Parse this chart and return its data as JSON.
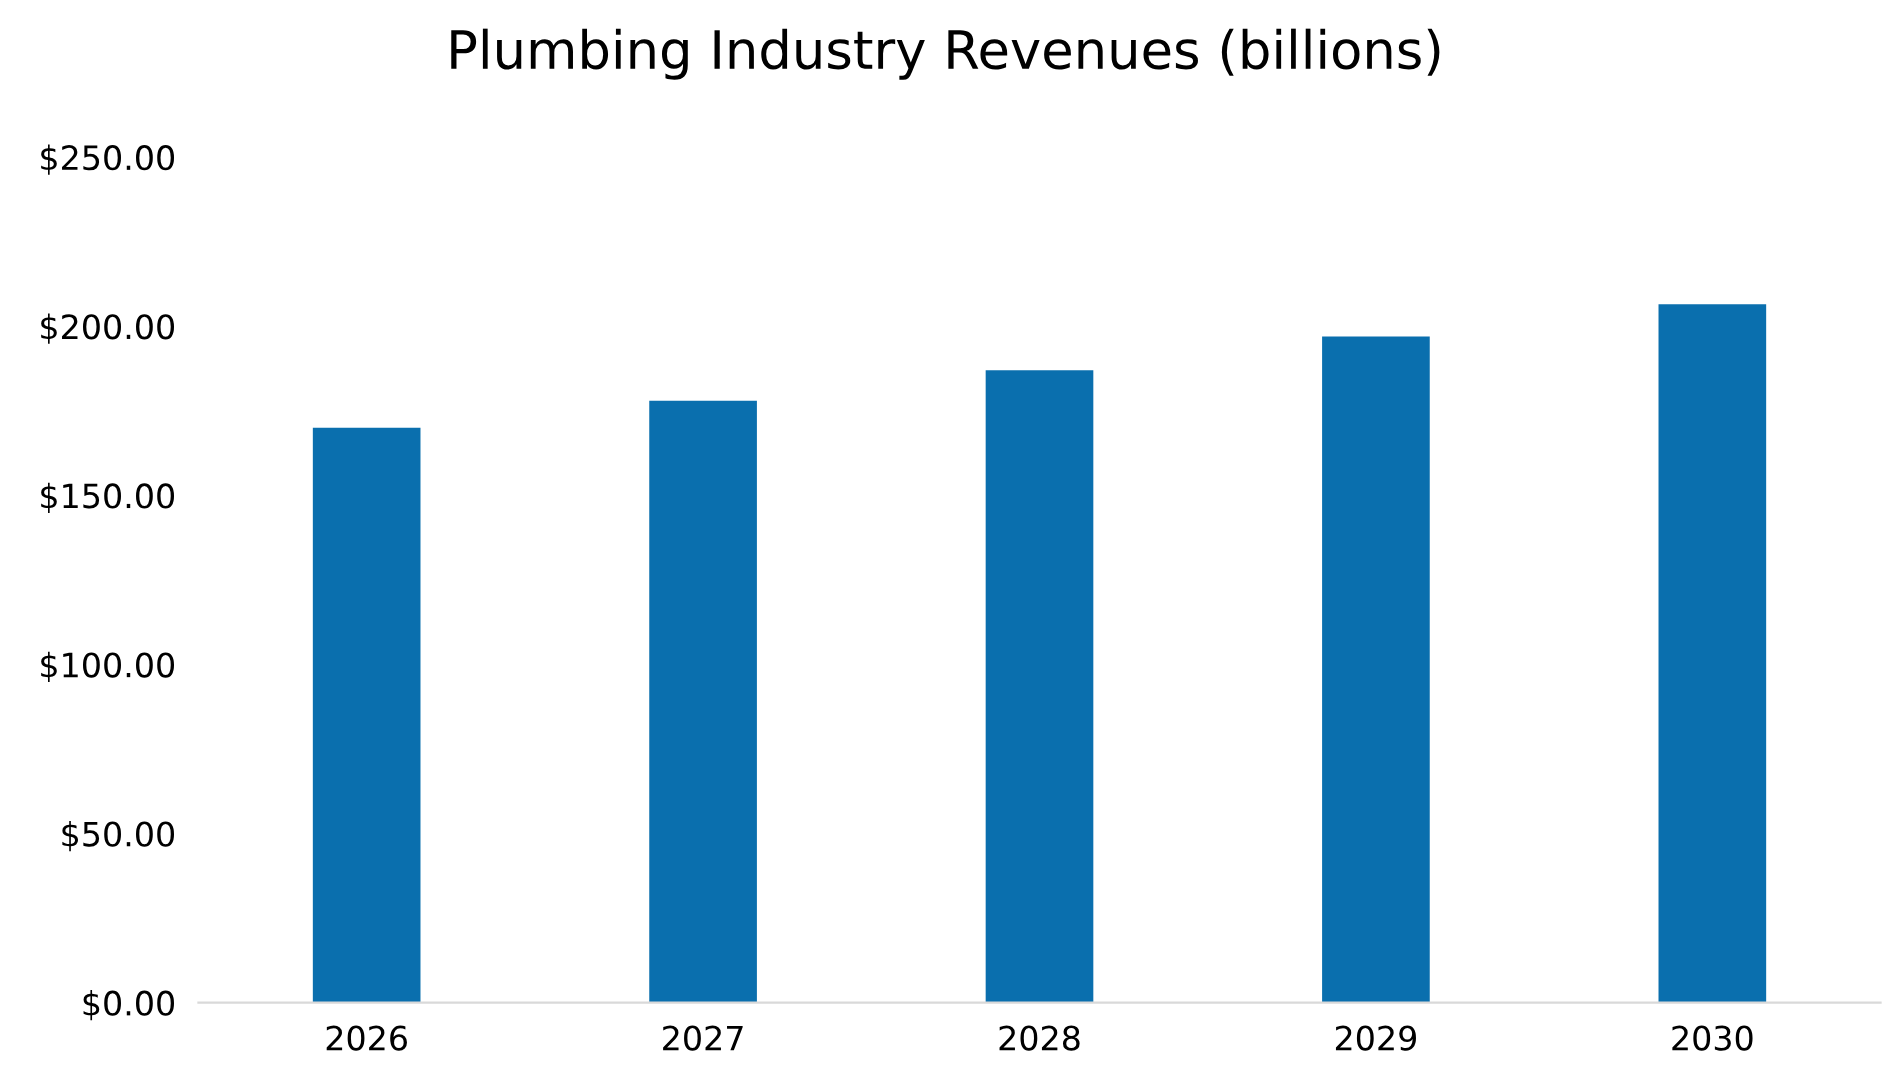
{
  "chart_data": {
    "type": "bar",
    "title": "Plumbing Industry Revenues (billions)",
    "categories": [
      "2026",
      "2027",
      "2028",
      "2029",
      "2030"
    ],
    "values": [
      170,
      178,
      187,
      197,
      206.5
    ],
    "color": "#0a6fae",
    "ylim": [
      0,
      250
    ],
    "yticks": [
      {
        "value": 0,
        "label": "$0.00"
      },
      {
        "value": 50,
        "label": "$50.00"
      },
      {
        "value": 100,
        "label": "$100.00"
      },
      {
        "value": 150,
        "label": "$150.00"
      },
      {
        "value": 200,
        "label": "$200.00"
      },
      {
        "value": 250,
        "label": "$250.00"
      }
    ],
    "grid": false
  }
}
